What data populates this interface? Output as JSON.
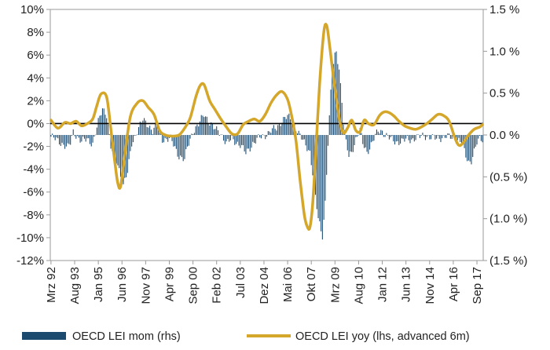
{
  "chart_data": {
    "type": "bar+line",
    "title": "",
    "xlabel": "",
    "ylabel_left": "",
    "ylabel_right": "",
    "x_tick_labels": [
      "Mrz 92",
      "Aug 93",
      "Jan 95",
      "Jun 96",
      "Nov 97",
      "Apr 99",
      "Sep 00",
      "Feb 02",
      "Jul 03",
      "Dez 04",
      "Mai 06",
      "Okt 07",
      "Mrz 09",
      "Aug 10",
      "Jan 12",
      "Jun 13",
      "Nov 14",
      "Apr 16",
      "Sep 17"
    ],
    "x_tick_months": [
      0,
      17,
      34,
      51,
      68,
      85,
      102,
      119,
      136,
      153,
      170,
      187,
      204,
      221,
      238,
      255,
      272,
      289,
      306
    ],
    "months_total": 311,
    "left_axis": {
      "ylim": [
        -12,
        10
      ],
      "ticks": [
        10,
        8,
        6,
        4,
        2,
        0,
        -2,
        -4,
        -6,
        -8,
        -10,
        -12
      ],
      "tick_labels": [
        "10%",
        "8%",
        "6%",
        "4%",
        "2%",
        "0%",
        "-2%",
        "-4%",
        "-6%",
        "-8%",
        "-10%",
        "-12%"
      ]
    },
    "right_axis": {
      "ylim": [
        -1.5,
        1.5
      ],
      "ticks": [
        1.5,
        1.0,
        0.5,
        0.0,
        -0.5,
        -1.0,
        -1.5
      ],
      "tick_labels": [
        "1.5 %",
        "1.0 %",
        "0.5 %",
        "0.0 %",
        "(0.5 %)",
        "(1.0 %)",
        "(1.5 %)"
      ]
    },
    "grid": false,
    "legend_position": "bottom",
    "series": [
      {
        "name": "OECD LEI mom (rhs)",
        "type": "bar",
        "axis": "right",
        "color": "#1c4a6e",
        "points": [
          [
            0,
            -0.02
          ],
          [
            6,
            -0.08
          ],
          [
            12,
            -0.15
          ],
          [
            14,
            -0.1
          ],
          [
            16,
            0.04
          ],
          [
            22,
            -0.08
          ],
          [
            26,
            -0.05
          ],
          [
            30,
            -0.1
          ],
          [
            34,
            0.15
          ],
          [
            37,
            0.32
          ],
          [
            40,
            0.25
          ],
          [
            43,
            -0.15
          ],
          [
            48,
            -0.35
          ],
          [
            52,
            -0.6
          ],
          [
            55,
            -0.45
          ],
          [
            58,
            -0.1
          ],
          [
            62,
            0.05
          ],
          [
            66,
            0.18
          ],
          [
            70,
            0.12
          ],
          [
            73,
            0.05
          ],
          [
            76,
            0.12
          ],
          [
            80,
            -0.05
          ],
          [
            86,
            -0.05
          ],
          [
            92,
            -0.25
          ],
          [
            96,
            -0.3
          ],
          [
            98,
            -0.15
          ],
          [
            102,
            0.05
          ],
          [
            106,
            0.12
          ],
          [
            110,
            0.25
          ],
          [
            113,
            0.18
          ],
          [
            117,
            0.08
          ],
          [
            122,
            0.02
          ],
          [
            126,
            -0.1
          ],
          [
            130,
            -0.05
          ],
          [
            136,
            -0.12
          ],
          [
            140,
            -0.22
          ],
          [
            145,
            -0.1
          ],
          [
            150,
            -0.03
          ],
          [
            154,
            0.0
          ],
          [
            158,
            0.05
          ],
          [
            162,
            0.08
          ],
          [
            166,
            0.18
          ],
          [
            170,
            0.22
          ],
          [
            174,
            0.15
          ],
          [
            178,
            0.02
          ],
          [
            182,
            -0.1
          ],
          [
            186,
            -0.2
          ],
          [
            188,
            -0.45
          ],
          [
            190,
            -0.75
          ],
          [
            192,
            -1.0
          ],
          [
            194,
            -1.15
          ],
          [
            195,
            -1.2
          ],
          [
            197,
            -0.8
          ],
          [
            199,
            -0.1
          ],
          [
            201,
            0.5
          ],
          [
            202,
            0.75
          ],
          [
            204,
            0.95
          ],
          [
            205,
            1.0
          ],
          [
            207,
            0.8
          ],
          [
            209,
            0.4
          ],
          [
            210,
            0.15
          ],
          [
            212,
            -0.1
          ],
          [
            214,
            -0.25
          ],
          [
            216,
            -0.2
          ],
          [
            219,
            -0.05
          ],
          [
            222,
            0.05
          ],
          [
            224,
            -0.1
          ],
          [
            227,
            -0.2
          ],
          [
            229,
            -0.15
          ],
          [
            232,
            -0.05
          ],
          [
            235,
            0.05
          ],
          [
            238,
            0.05
          ],
          [
            240,
            0.0
          ],
          [
            244,
            -0.05
          ],
          [
            248,
            -0.08
          ],
          [
            252,
            -0.08
          ],
          [
            256,
            -0.05
          ],
          [
            260,
            -0.05
          ],
          [
            264,
            -0.03
          ],
          [
            268,
            0.0
          ],
          [
            272,
            -0.03
          ],
          [
            276,
            -0.04
          ],
          [
            280,
            -0.03
          ],
          [
            284,
            -0.02
          ],
          [
            288,
            -0.03
          ],
          [
            292,
            -0.05
          ],
          [
            295,
            -0.1
          ],
          [
            298,
            -0.25
          ],
          [
            300,
            -0.32
          ],
          [
            302,
            -0.3
          ],
          [
            304,
            -0.2
          ],
          [
            306,
            -0.1
          ],
          [
            308,
            -0.05
          ],
          [
            310,
            -0.05
          ]
        ]
      },
      {
        "name": "OECD LEI yoy (lhs, advanced 6m)",
        "type": "line",
        "axis": "left",
        "color": "#d4a62a",
        "points": [
          [
            0,
            0.3
          ],
          [
            5,
            -0.4
          ],
          [
            10,
            0.1
          ],
          [
            14,
            0.0
          ],
          [
            18,
            0.2
          ],
          [
            22,
            -0.2
          ],
          [
            26,
            0.0
          ],
          [
            30,
            0.4
          ],
          [
            33,
            1.6
          ],
          [
            36,
            2.6
          ],
          [
            40,
            2.3
          ],
          [
            43,
            -0.5
          ],
          [
            46,
            -3.5
          ],
          [
            48,
            -5.2
          ],
          [
            50,
            -5.5
          ],
          [
            53,
            -2.8
          ],
          [
            57,
            0.6
          ],
          [
            62,
            1.8
          ],
          [
            66,
            2.0
          ],
          [
            70,
            1.4
          ],
          [
            74,
            0.8
          ],
          [
            78,
            -0.6
          ],
          [
            82,
            -1.0
          ],
          [
            87,
            -1.1
          ],
          [
            92,
            -1.0
          ],
          [
            96,
            -0.4
          ],
          [
            100,
            0.5
          ],
          [
            104,
            2.3
          ],
          [
            107,
            3.3
          ],
          [
            110,
            3.4
          ],
          [
            114,
            2.0
          ],
          [
            118,
            1.2
          ],
          [
            122,
            0.4
          ],
          [
            126,
            -0.3
          ],
          [
            130,
            -0.9
          ],
          [
            134,
            -0.9
          ],
          [
            138,
            -0.1
          ],
          [
            142,
            0.2
          ],
          [
            146,
            0.4
          ],
          [
            150,
            0.2
          ],
          [
            154,
            0.8
          ],
          [
            158,
            1.8
          ],
          [
            162,
            2.5
          ],
          [
            166,
            2.8
          ],
          [
            170,
            2.1
          ],
          [
            173,
            0.6
          ],
          [
            176,
            -1.5
          ],
          [
            179,
            -5.0
          ],
          [
            182,
            -8.0
          ],
          [
            184,
            -9.0
          ],
          [
            186,
            -9.1
          ],
          [
            188,
            -7.0
          ],
          [
            190,
            -3.0
          ],
          [
            193,
            3.5
          ],
          [
            196,
            8.0
          ],
          [
            198,
            8.6
          ],
          [
            200,
            7.0
          ],
          [
            203,
            4.0
          ],
          [
            207,
            0.5
          ],
          [
            210,
            -0.8
          ],
          [
            213,
            -0.4
          ],
          [
            216,
            0.3
          ],
          [
            219,
            -0.6
          ],
          [
            222,
            -0.7
          ],
          [
            225,
            0.3
          ],
          [
            228,
            0.0
          ],
          [
            232,
            -0.1
          ],
          [
            236,
            0.7
          ],
          [
            239,
            1.0
          ],
          [
            242,
            1.0
          ],
          [
            246,
            0.7
          ],
          [
            250,
            0.2
          ],
          [
            254,
            -0.2
          ],
          [
            258,
            -0.4
          ],
          [
            262,
            -0.5
          ],
          [
            266,
            -0.3
          ],
          [
            270,
            0.0
          ],
          [
            274,
            0.4
          ],
          [
            278,
            0.8
          ],
          [
            282,
            0.7
          ],
          [
            286,
            0.2
          ],
          [
            290,
            -1.2
          ],
          [
            293,
            -1.9
          ],
          [
            296,
            -1.7
          ],
          [
            300,
            -1.0
          ],
          [
            304,
            -0.5
          ],
          [
            308,
            -0.3
          ],
          [
            310,
            -0.1
          ]
        ]
      }
    ]
  }
}
